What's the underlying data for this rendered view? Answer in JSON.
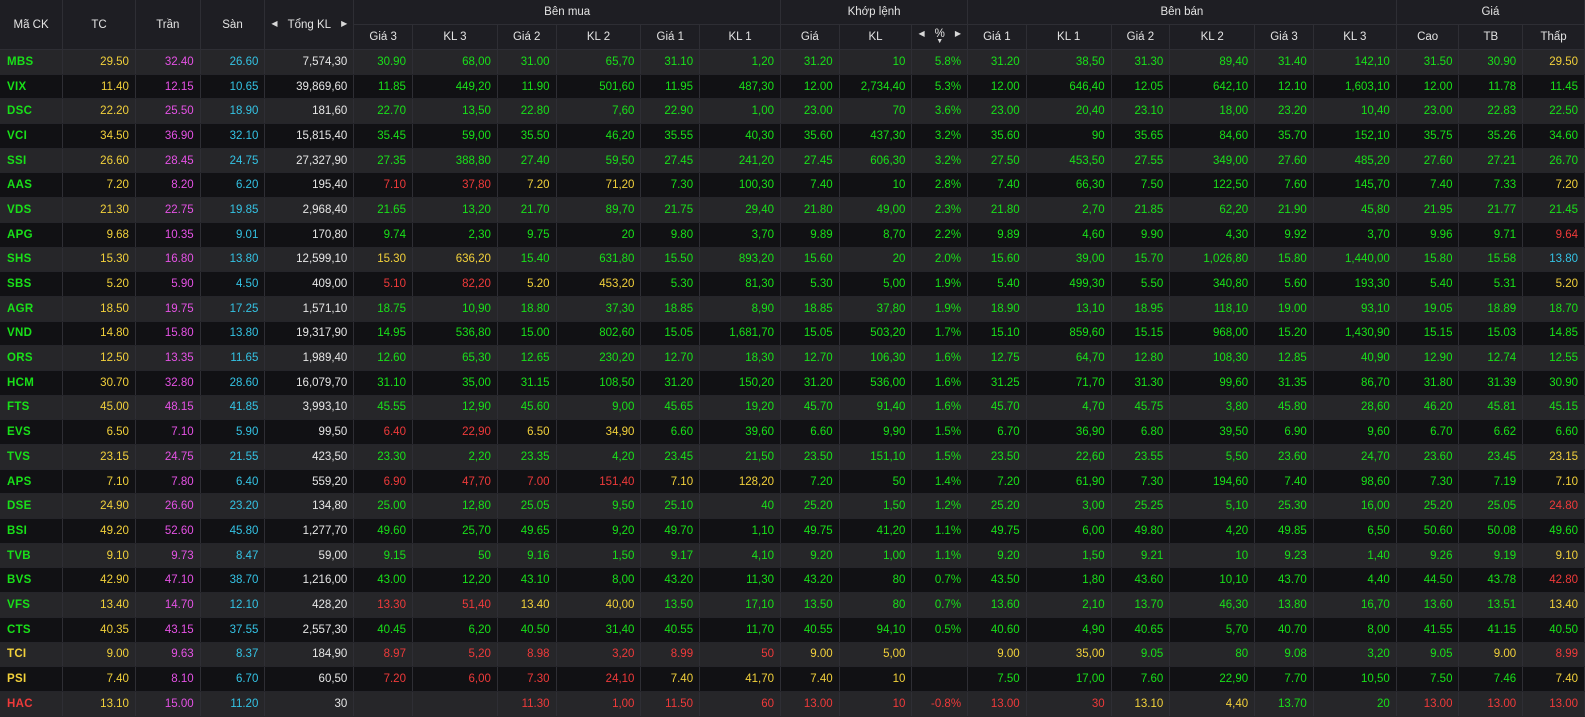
{
  "colors": {
    "up": "#19e019",
    "ref": "#f2d13b",
    "down": "#ef3a3a",
    "ceiling": "#e552e5",
    "floor": "#34c3e4",
    "volume": "#e6e6e6"
  },
  "headers": {
    "symbol": "Mã CK",
    "tc": "TC",
    "ceiling": "Trần",
    "floor": "Sàn",
    "total_vol": "Tổng KL",
    "groups": {
      "buy": "Bên mua",
      "match": "Khớp lệnh",
      "sell": "Bên bán",
      "price": "Giá"
    },
    "buy": [
      "Giá 3",
      "KL 3",
      "Giá 2",
      "KL 2",
      "Giá 1",
      "KL 1"
    ],
    "match": [
      "Giá",
      "KL",
      "%"
    ],
    "sell": [
      "Giá 1",
      "KL 1",
      "Giá 2",
      "KL 2",
      "Giá 3",
      "KL 3"
    ],
    "price": [
      "Cao",
      "TB",
      "Thấp"
    ]
  },
  "icons": {
    "left": "arrow-left-icon",
    "right": "arrow-right-icon",
    "sort_desc": "sort-desc-icon"
  },
  "rows": [
    {
      "sym": "MBS",
      "tc": "29.50",
      "ce": "32.40",
      "fl": "26.60",
      "vol": "7,574,30",
      "b3": "30.90",
      "bv3": "68,00",
      "b2": "31.00",
      "bv2": "65,70",
      "b1": "31.10",
      "bv1": "1,20",
      "mp": "31.20",
      "mv": "10",
      "pct": "5.8%",
      "s1": "31.20",
      "sv1": "38,50",
      "s2": "31.30",
      "sv2": "89,40",
      "s3": "31.40",
      "sv3": "142,10",
      "hi": "31.50",
      "avg": "30.90",
      "lo": "29.50"
    },
    {
      "sym": "VIX",
      "tc": "11.40",
      "ce": "12.15",
      "fl": "10.65",
      "vol": "39,869,60",
      "b3": "11.85",
      "bv3": "449,20",
      "b2": "11.90",
      "bv2": "501,60",
      "b1": "11.95",
      "bv1": "487,30",
      "mp": "12.00",
      "mv": "2,734,40",
      "pct": "5.3%",
      "s1": "12.00",
      "sv1": "646,40",
      "s2": "12.05",
      "sv2": "642,10",
      "s3": "12.10",
      "sv3": "1,603,10",
      "hi": "12.00",
      "avg": "11.78",
      "lo": "11.45"
    },
    {
      "sym": "DSC",
      "tc": "22.20",
      "ce": "25.50",
      "fl": "18.90",
      "vol": "181,60",
      "b3": "22.70",
      "bv3": "13,50",
      "b2": "22.80",
      "bv2": "7,60",
      "b1": "22.90",
      "bv1": "1,00",
      "mp": "23.00",
      "mv": "70",
      "pct": "3.6%",
      "s1": "23.00",
      "sv1": "20,40",
      "s2": "23.10",
      "sv2": "18,00",
      "s3": "23.20",
      "sv3": "10,40",
      "hi": "23.00",
      "avg": "22.83",
      "lo": "22.50"
    },
    {
      "sym": "VCI",
      "tc": "34.50",
      "ce": "36.90",
      "fl": "32.10",
      "vol": "15,815,40",
      "b3": "35.45",
      "bv3": "59,00",
      "b2": "35.50",
      "bv2": "46,20",
      "b1": "35.55",
      "bv1": "40,30",
      "mp": "35.60",
      "mv": "437,30",
      "pct": "3.2%",
      "s1": "35.60",
      "sv1": "90",
      "s2": "35.65",
      "sv2": "84,60",
      "s3": "35.70",
      "sv3": "152,10",
      "hi": "35.75",
      "avg": "35.26",
      "lo": "34.60"
    },
    {
      "sym": "SSI",
      "tc": "26.60",
      "ce": "28.45",
      "fl": "24.75",
      "vol": "27,327,90",
      "b3": "27.35",
      "bv3": "388,80",
      "b2": "27.40",
      "bv2": "59,50",
      "b1": "27.45",
      "bv1": "241,20",
      "mp": "27.45",
      "mv": "606,30",
      "pct": "3.2%",
      "s1": "27.50",
      "sv1": "453,50",
      "s2": "27.55",
      "sv2": "349,00",
      "s3": "27.60",
      "sv3": "485,20",
      "hi": "27.60",
      "avg": "27.21",
      "lo": "26.70"
    },
    {
      "sym": "AAS",
      "tc": "7.20",
      "ce": "8.20",
      "fl": "6.20",
      "vol": "195,40",
      "b3": "7.10",
      "bv3": "37,80",
      "b2": "7.20",
      "bv2": "71,20",
      "b1": "7.30",
      "bv1": "100,30",
      "mp": "7.40",
      "mv": "10",
      "pct": "2.8%",
      "s1": "7.40",
      "sv1": "66,30",
      "s2": "7.50",
      "sv2": "122,50",
      "s3": "7.60",
      "sv3": "145,70",
      "hi": "7.40",
      "avg": "7.33",
      "lo": "7.20"
    },
    {
      "sym": "VDS",
      "tc": "21.30",
      "ce": "22.75",
      "fl": "19.85",
      "vol": "2,968,40",
      "b3": "21.65",
      "bv3": "13,20",
      "b2": "21.70",
      "bv2": "89,70",
      "b1": "21.75",
      "bv1": "29,40",
      "mp": "21.80",
      "mv": "49,00",
      "pct": "2.3%",
      "s1": "21.80",
      "sv1": "2,70",
      "s2": "21.85",
      "sv2": "62,20",
      "s3": "21.90",
      "sv3": "45,80",
      "hi": "21.95",
      "avg": "21.77",
      "lo": "21.45"
    },
    {
      "sym": "APG",
      "tc": "9.68",
      "ce": "10.35",
      "fl": "9.01",
      "vol": "170,80",
      "b3": "9.74",
      "bv3": "2,30",
      "b2": "9.75",
      "bv2": "20",
      "b1": "9.80",
      "bv1": "3,70",
      "mp": "9.89",
      "mv": "8,70",
      "pct": "2.2%",
      "s1": "9.89",
      "sv1": "4,60",
      "s2": "9.90",
      "sv2": "4,30",
      "s3": "9.92",
      "sv3": "3,70",
      "hi": "9.96",
      "avg": "9.71",
      "lo": "9.64"
    },
    {
      "sym": "SHS",
      "tc": "15.30",
      "ce": "16.80",
      "fl": "13.80",
      "vol": "12,599,10",
      "b3": "15.30",
      "bv3": "636,20",
      "b2": "15.40",
      "bv2": "631,80",
      "b1": "15.50",
      "bv1": "893,20",
      "mp": "15.60",
      "mv": "20",
      "pct": "2.0%",
      "s1": "15.60",
      "sv1": "39,00",
      "s2": "15.70",
      "sv2": "1,026,80",
      "s3": "15.80",
      "sv3": "1,440,00",
      "hi": "15.80",
      "avg": "15.58",
      "lo": "13.80"
    },
    {
      "sym": "SBS",
      "tc": "5.20",
      "ce": "5.90",
      "fl": "4.50",
      "vol": "409,00",
      "b3": "5.10",
      "bv3": "82,20",
      "b2": "5.20",
      "bv2": "453,20",
      "b1": "5.30",
      "bv1": "81,30",
      "mp": "5.30",
      "mv": "5,00",
      "pct": "1.9%",
      "s1": "5.40",
      "sv1": "499,30",
      "s2": "5.50",
      "sv2": "340,80",
      "s3": "5.60",
      "sv3": "193,30",
      "hi": "5.40",
      "avg": "5.31",
      "lo": "5.20"
    },
    {
      "sym": "AGR",
      "tc": "18.50",
      "ce": "19.75",
      "fl": "17.25",
      "vol": "1,571,10",
      "b3": "18.75",
      "bv3": "10,90",
      "b2": "18.80",
      "bv2": "37,30",
      "b1": "18.85",
      "bv1": "8,90",
      "mp": "18.85",
      "mv": "37,80",
      "pct": "1.9%",
      "s1": "18.90",
      "sv1": "13,10",
      "s2": "18.95",
      "sv2": "118,10",
      "s3": "19.00",
      "sv3": "93,10",
      "hi": "19.05",
      "avg": "18.89",
      "lo": "18.70"
    },
    {
      "sym": "VND",
      "tc": "14.80",
      "ce": "15.80",
      "fl": "13.80",
      "vol": "19,317,90",
      "b3": "14.95",
      "bv3": "536,80",
      "b2": "15.00",
      "bv2": "802,60",
      "b1": "15.05",
      "bv1": "1,681,70",
      "mp": "15.05",
      "mv": "503,20",
      "pct": "1.7%",
      "s1": "15.10",
      "sv1": "859,60",
      "s2": "15.15",
      "sv2": "968,00",
      "s3": "15.20",
      "sv3": "1,430,90",
      "hi": "15.15",
      "avg": "15.03",
      "lo": "14.85"
    },
    {
      "sym": "ORS",
      "tc": "12.50",
      "ce": "13.35",
      "fl": "11.65",
      "vol": "1,989,40",
      "b3": "12.60",
      "bv3": "65,30",
      "b2": "12.65",
      "bv2": "230,20",
      "b1": "12.70",
      "bv1": "18,30",
      "mp": "12.70",
      "mv": "106,30",
      "pct": "1.6%",
      "s1": "12.75",
      "sv1": "64,70",
      "s2": "12.80",
      "sv2": "108,30",
      "s3": "12.85",
      "sv3": "40,90",
      "hi": "12.90",
      "avg": "12.74",
      "lo": "12.55"
    },
    {
      "sym": "HCM",
      "tc": "30.70",
      "ce": "32.80",
      "fl": "28.60",
      "vol": "16,079,70",
      "b3": "31.10",
      "bv3": "35,00",
      "b2": "31.15",
      "bv2": "108,50",
      "b1": "31.20",
      "bv1": "150,20",
      "mp": "31.20",
      "mv": "536,00",
      "pct": "1.6%",
      "s1": "31.25",
      "sv1": "71,70",
      "s2": "31.30",
      "sv2": "99,60",
      "s3": "31.35",
      "sv3": "86,70",
      "hi": "31.80",
      "avg": "31.39",
      "lo": "30.90"
    },
    {
      "sym": "FTS",
      "tc": "45.00",
      "ce": "48.15",
      "fl": "41.85",
      "vol": "3,993,10",
      "b3": "45.55",
      "bv3": "12,90",
      "b2": "45.60",
      "bv2": "9,00",
      "b1": "45.65",
      "bv1": "19,20",
      "mp": "45.70",
      "mv": "91,40",
      "pct": "1.6%",
      "s1": "45.70",
      "sv1": "4,70",
      "s2": "45.75",
      "sv2": "3,80",
      "s3": "45.80",
      "sv3": "28,60",
      "hi": "46.20",
      "avg": "45.81",
      "lo": "45.15"
    },
    {
      "sym": "EVS",
      "tc": "6.50",
      "ce": "7.10",
      "fl": "5.90",
      "vol": "99,50",
      "b3": "6.40",
      "bv3": "22,90",
      "b2": "6.50",
      "bv2": "34,90",
      "b1": "6.60",
      "bv1": "39,60",
      "mp": "6.60",
      "mv": "9,90",
      "pct": "1.5%",
      "s1": "6.70",
      "sv1": "36,90",
      "s2": "6.80",
      "sv2": "39,50",
      "s3": "6.90",
      "sv3": "9,60",
      "hi": "6.70",
      "avg": "6.62",
      "lo": "6.60"
    },
    {
      "sym": "TVS",
      "tc": "23.15",
      "ce": "24.75",
      "fl": "21.55",
      "vol": "423,50",
      "b3": "23.30",
      "bv3": "2,20",
      "b2": "23.35",
      "bv2": "4,20",
      "b1": "23.45",
      "bv1": "21,50",
      "mp": "23.50",
      "mv": "151,10",
      "pct": "1.5%",
      "s1": "23.50",
      "sv1": "22,60",
      "s2": "23.55",
      "sv2": "5,50",
      "s3": "23.60",
      "sv3": "24,70",
      "hi": "23.60",
      "avg": "23.45",
      "lo": "23.15"
    },
    {
      "sym": "APS",
      "tc": "7.10",
      "ce": "7.80",
      "fl": "6.40",
      "vol": "559,20",
      "b3": "6.90",
      "bv3": "47,70",
      "b2": "7.00",
      "bv2": "151,40",
      "b1": "7.10",
      "bv1": "128,20",
      "mp": "7.20",
      "mv": "50",
      "pct": "1.4%",
      "s1": "7.20",
      "sv1": "61,90",
      "s2": "7.30",
      "sv2": "194,60",
      "s3": "7.40",
      "sv3": "98,60",
      "hi": "7.30",
      "avg": "7.19",
      "lo": "7.10"
    },
    {
      "sym": "DSE",
      "tc": "24.90",
      "ce": "26.60",
      "fl": "23.20",
      "vol": "134,80",
      "b3": "25.00",
      "bv3": "12,80",
      "b2": "25.05",
      "bv2": "9,50",
      "b1": "25.10",
      "bv1": "40",
      "mp": "25.20",
      "mv": "1,50",
      "pct": "1.2%",
      "s1": "25.20",
      "sv1": "3,00",
      "s2": "25.25",
      "sv2": "5,10",
      "s3": "25.30",
      "sv3": "16,00",
      "hi": "25.20",
      "avg": "25.05",
      "lo": "24.80"
    },
    {
      "sym": "BSI",
      "tc": "49.20",
      "ce": "52.60",
      "fl": "45.80",
      "vol": "1,277,70",
      "b3": "49.60",
      "bv3": "25,70",
      "b2": "49.65",
      "bv2": "9,20",
      "b1": "49.70",
      "bv1": "1,10",
      "mp": "49.75",
      "mv": "41,20",
      "pct": "1.1%",
      "s1": "49.75",
      "sv1": "6,00",
      "s2": "49.80",
      "sv2": "4,20",
      "s3": "49.85",
      "sv3": "6,50",
      "hi": "50.60",
      "avg": "50.08",
      "lo": "49.60"
    },
    {
      "sym": "TVB",
      "tc": "9.10",
      "ce": "9.73",
      "fl": "8.47",
      "vol": "59,00",
      "b3": "9.15",
      "bv3": "50",
      "b2": "9.16",
      "bv2": "1,50",
      "b1": "9.17",
      "bv1": "4,10",
      "mp": "9.20",
      "mv": "1,00",
      "pct": "1.1%",
      "s1": "9.20",
      "sv1": "1,50",
      "s2": "9.21",
      "sv2": "10",
      "s3": "9.23",
      "sv3": "1,40",
      "hi": "9.26",
      "avg": "9.19",
      "lo": "9.10"
    },
    {
      "sym": "BVS",
      "tc": "42.90",
      "ce": "47.10",
      "fl": "38.70",
      "vol": "1,216,00",
      "b3": "43.00",
      "bv3": "12,20",
      "b2": "43.10",
      "bv2": "8,00",
      "b1": "43.20",
      "bv1": "11,30",
      "mp": "43.20",
      "mv": "80",
      "pct": "0.7%",
      "s1": "43.50",
      "sv1": "1,80",
      "s2": "43.60",
      "sv2": "10,10",
      "s3": "43.70",
      "sv3": "4,40",
      "hi": "44.50",
      "avg": "43.78",
      "lo": "42.80"
    },
    {
      "sym": "VFS",
      "tc": "13.40",
      "ce": "14.70",
      "fl": "12.10",
      "vol": "428,20",
      "b3": "13.30",
      "bv3": "51,40",
      "b2": "13.40",
      "bv2": "40,00",
      "b1": "13.50",
      "bv1": "17,10",
      "mp": "13.50",
      "mv": "80",
      "pct": "0.7%",
      "s1": "13.60",
      "sv1": "2,10",
      "s2": "13.70",
      "sv2": "46,30",
      "s3": "13.80",
      "sv3": "16,70",
      "hi": "13.60",
      "avg": "13.51",
      "lo": "13.40"
    },
    {
      "sym": "CTS",
      "tc": "40.35",
      "ce": "43.15",
      "fl": "37.55",
      "vol": "2,557,30",
      "b3": "40.45",
      "bv3": "6,20",
      "b2": "40.50",
      "bv2": "31,40",
      "b1": "40.55",
      "bv1": "11,70",
      "mp": "40.55",
      "mv": "94,10",
      "pct": "0.5%",
      "s1": "40.60",
      "sv1": "4,90",
      "s2": "40.65",
      "sv2": "5,70",
      "s3": "40.70",
      "sv3": "8,00",
      "hi": "41.55",
      "avg": "41.15",
      "lo": "40.50"
    },
    {
      "sym": "TCI",
      "tc": "9.00",
      "ce": "9.63",
      "fl": "8.37",
      "vol": "184,90",
      "b3": "8.97",
      "bv3": "5,20",
      "b2": "8.98",
      "bv2": "3,20",
      "b1": "8.99",
      "bv1": "50",
      "mp": "9.00",
      "mv": "5,00",
      "pct": "",
      "s1": "9.00",
      "sv1": "35,00",
      "s2": "9.05",
      "sv2": "80",
      "s3": "9.08",
      "sv3": "3,20",
      "hi": "9.05",
      "avg": "9.00",
      "lo": "8.99"
    },
    {
      "sym": "PSI",
      "tc": "7.40",
      "ce": "8.10",
      "fl": "6.70",
      "vol": "60,50",
      "b3": "7.20",
      "bv3": "6,00",
      "b2": "7.30",
      "bv2": "24,10",
      "b1": "7.40",
      "bv1": "41,70",
      "mp": "7.40",
      "mv": "10",
      "pct": "",
      "s1": "7.50",
      "sv1": "17,00",
      "s2": "7.60",
      "sv2": "22,90",
      "s3": "7.70",
      "sv3": "10,50",
      "hi": "7.50",
      "avg": "7.46",
      "lo": "7.40"
    },
    {
      "sym": "HAC",
      "tc": "13.10",
      "ce": "15.00",
      "fl": "11.20",
      "vol": "30",
      "b3": "",
      "bv3": "",
      "b2": "11.30",
      "bv2": "1,00",
      "b1": "11.50",
      "bv1": "60",
      "mp": "13.00",
      "mv": "10",
      "pct": "-0.8%",
      "s1": "13.00",
      "sv1": "30",
      "s2": "13.10",
      "sv2": "4,40",
      "s3": "13.70",
      "sv3": "20",
      "hi": "13.00",
      "avg": "13.00",
      "lo": "13.00"
    }
  ]
}
